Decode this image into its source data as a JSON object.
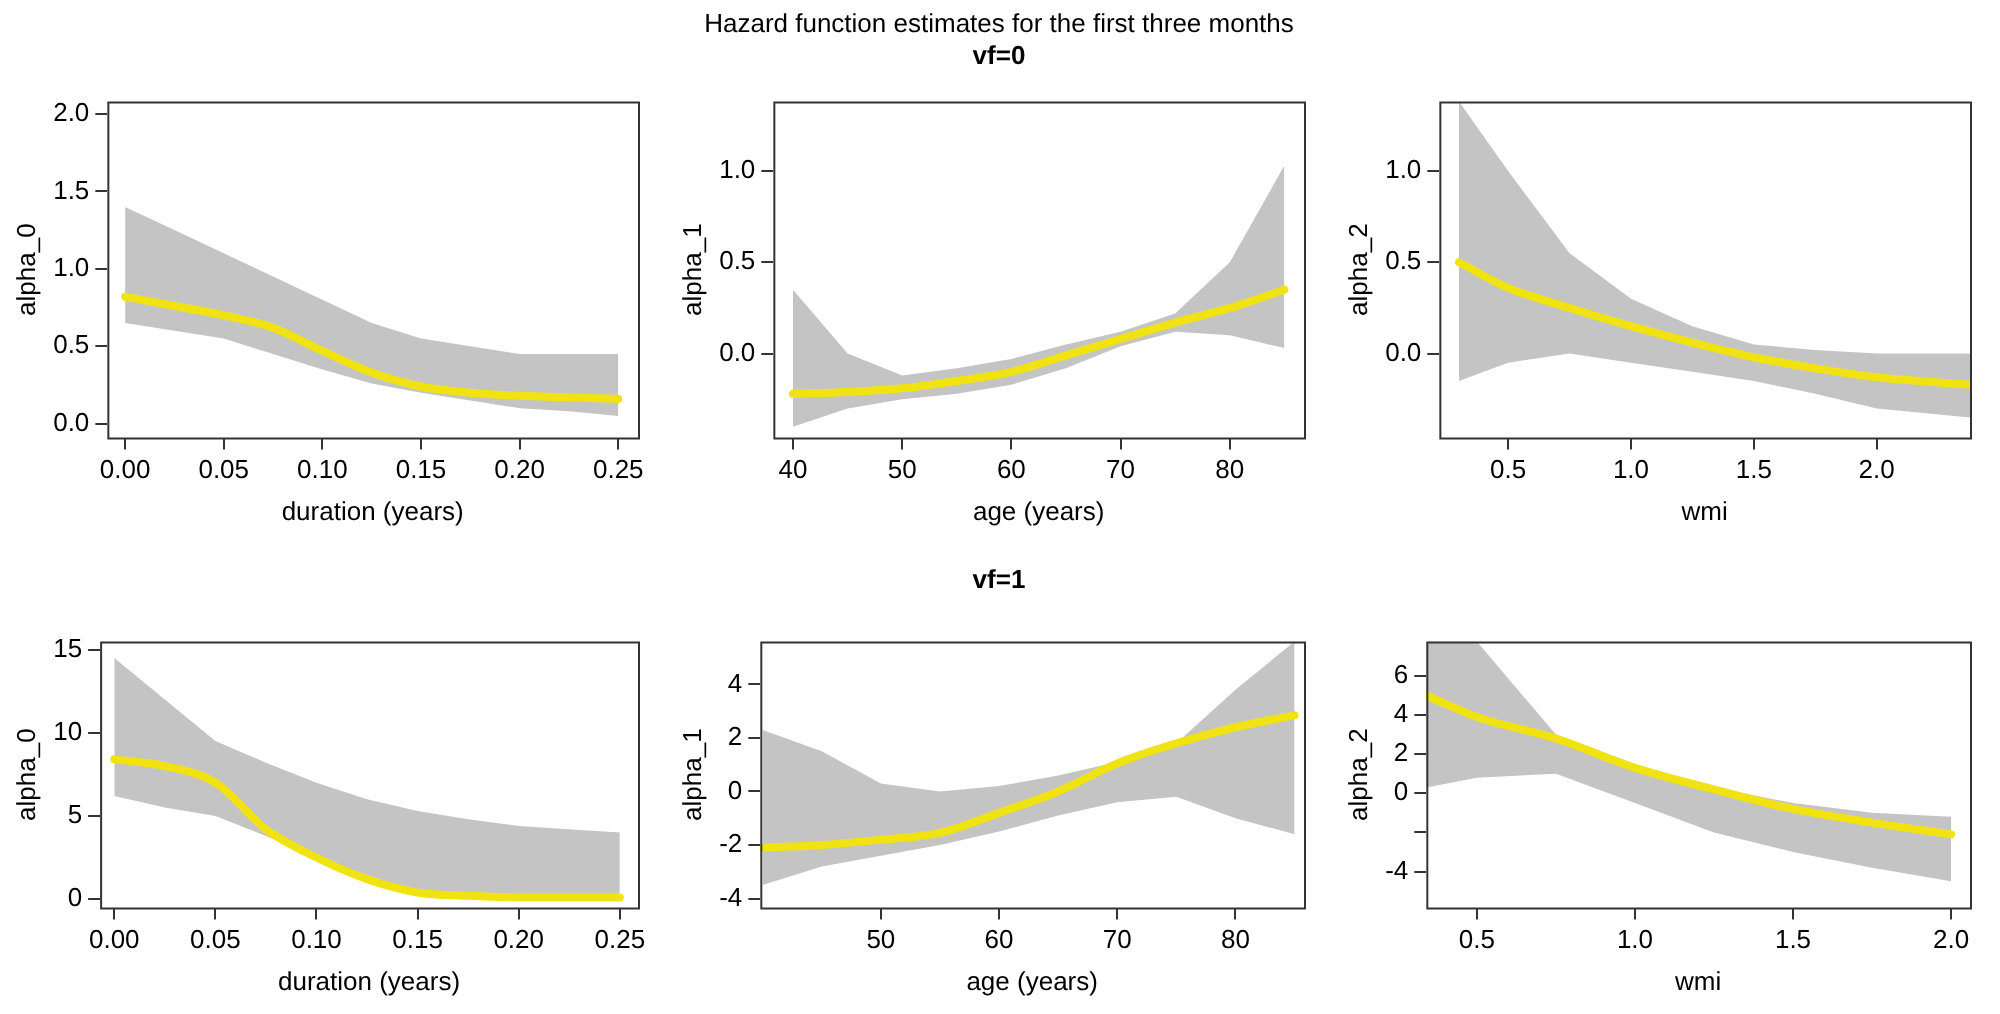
{
  "chart_data": [
    {
      "type": "line",
      "xlabel": "duration (years)",
      "ylabel": "alpha_0",
      "xlim": [
        -0.009,
        0.26
      ],
      "ylim": [
        -0.09,
        2.08
      ],
      "xticks": [
        {
          "value": 0,
          "label": "0.00"
        },
        0.05,
        {
          "value": 0.1,
          "label": "0.10"
        },
        0.15,
        {
          "value": 0.2,
          "label": "0.20"
        },
        0.25
      ],
      "yticks": [
        {
          "value": 0,
          "label": "0.0"
        },
        0.5,
        {
          "value": 1,
          "label": "1.0"
        },
        1.5,
        {
          "value": 2,
          "label": "2.0"
        }
      ],
      "grid": false,
      "legend": false,
      "marker": "none",
      "line_style": "solid",
      "series": [
        {
          "color": "#f0e311",
          "x": [
            0,
            0.025,
            0.05,
            0.075,
            0.1,
            0.125,
            0.15,
            0.175,
            0.2,
            0.225,
            0.25
          ],
          "values": [
            0.82,
            0.76,
            0.7,
            0.62,
            0.47,
            0.33,
            0.24,
            0.2,
            0.18,
            0.17,
            0.16
          ],
          "lower": [
            0.65,
            0.6,
            0.55,
            0.45,
            0.35,
            0.26,
            0.2,
            0.15,
            0.1,
            0.08,
            0.05
          ],
          "upper": [
            1.4,
            1.25,
            1.1,
            0.95,
            0.8,
            0.65,
            0.55,
            0.5,
            0.45,
            0.45,
            0.45
          ]
        }
      ]
    },
    {
      "type": "line",
      "title": "Hazard function estimates for the first three months",
      "subtitle": "vf=0",
      "xlabel": "age (years)",
      "ylabel": "alpha_1",
      "xlim": [
        38.2,
        86.8
      ],
      "ylim": [
        -0.46,
        1.38
      ],
      "xticks": [
        40,
        50,
        60,
        70,
        80
      ],
      "yticks": [
        {
          "value": 0,
          "label": "0.0"
        },
        0.5,
        {
          "value": 1,
          "label": "1.0"
        }
      ],
      "grid": false,
      "legend": false,
      "marker": "none",
      "line_style": "solid",
      "series": [
        {
          "color": "#f0e311",
          "x": [
            40,
            45,
            50,
            55,
            60,
            65,
            70,
            75,
            80,
            85
          ],
          "values": [
            -0.22,
            -0.21,
            -0.19,
            -0.15,
            -0.1,
            -0.01,
            0.08,
            0.17,
            0.25,
            0.35
          ],
          "lower": [
            -0.4,
            -0.3,
            -0.25,
            -0.22,
            -0.17,
            -0.08,
            0.04,
            0.12,
            0.1,
            0.03
          ],
          "upper": [
            0.35,
            0,
            -0.12,
            -0.08,
            -0.03,
            0.05,
            0.12,
            0.22,
            0.5,
            1.03
          ]
        }
      ]
    },
    {
      "type": "line",
      "xlabel": "wmi",
      "ylabel": "alpha_2",
      "xlim": [
        0.22,
        2.38
      ],
      "ylim": [
        -0.46,
        1.38
      ],
      "xticks": [
        0.5,
        {
          "value": 1,
          "label": "1.0"
        },
        1.5,
        {
          "value": 2,
          "label": "2.0"
        }
      ],
      "yticks": [
        {
          "value": 0,
          "label": "0.0"
        },
        0.5,
        {
          "value": 1,
          "label": "1.0"
        }
      ],
      "grid": false,
      "legend": false,
      "marker": "none",
      "line_style": "solid",
      "series": [
        {
          "color": "#f0e311",
          "x": [
            0.3,
            0.5,
            0.75,
            1,
            1.25,
            1.5,
            1.75,
            2,
            2.38
          ],
          "values": [
            0.5,
            0.36,
            0.25,
            0.15,
            0.06,
            -0.02,
            -0.08,
            -0.13,
            -0.17
          ],
          "lower": [
            -0.15,
            -0.05,
            0,
            -0.05,
            -0.1,
            -0.15,
            -0.22,
            -0.3,
            -0.35
          ],
          "upper": [
            1.38,
            1,
            0.55,
            0.3,
            0.15,
            0.05,
            0.02,
            0,
            0
          ]
        }
      ]
    },
    {
      "type": "line",
      "xlabel": "duration (years)",
      "ylabel": "alpha_0",
      "xlim": [
        -0.007,
        0.259
      ],
      "ylim": [
        -0.51,
        15.48
      ],
      "xticks": [
        {
          "value": 0,
          "label": "0.00"
        },
        0.05,
        {
          "value": 0.1,
          "label": "0.10"
        },
        0.15,
        {
          "value": 0.2,
          "label": "0.20"
        },
        0.25
      ],
      "yticks": [
        0,
        5,
        10,
        15
      ],
      "grid": false,
      "legend": false,
      "marker": "none",
      "line_style": "solid",
      "series": [
        {
          "color": "#f0e311",
          "x": [
            0,
            0.025,
            0.05,
            0.075,
            0.1,
            0.125,
            0.15,
            0.175,
            0.2,
            0.225,
            0.25
          ],
          "values": [
            8.4,
            8,
            7,
            4.2,
            2.5,
            1.2,
            0.4,
            0.2,
            0.1,
            0.1,
            0.1
          ],
          "lower": [
            6.2,
            5.5,
            5,
            3.8,
            2.5,
            1.2,
            0.4,
            0.2,
            0.1,
            0.1,
            0.1
          ],
          "upper": [
            14.5,
            12,
            9.5,
            8.2,
            7,
            6,
            5.3,
            4.8,
            4.4,
            4.2,
            4
          ]
        }
      ]
    },
    {
      "type": "line",
      "title": "vf=1",
      "xlabel": "age (years)",
      "ylabel": "alpha_1",
      "xlim": [
        39.8,
        85.8
      ],
      "ylim": [
        -4.34,
        5.6
      ],
      "xticks": [
        50,
        60,
        70,
        80
      ],
      "yticks": [
        -4,
        -2,
        0,
        2,
        4
      ],
      "grid": false,
      "legend": false,
      "marker": "none",
      "line_style": "solid",
      "series": [
        {
          "color": "#f0e311",
          "x": [
            40,
            45,
            50,
            55,
            60,
            65,
            70,
            75,
            80,
            85
          ],
          "values": [
            -2.1,
            -2,
            -1.8,
            -1.55,
            -0.8,
            0,
            1.05,
            1.8,
            2.4,
            2.85
          ],
          "lower": [
            -3.5,
            -2.8,
            -2.4,
            -2,
            -1.5,
            -0.9,
            -0.4,
            -0.2,
            -1,
            -1.6
          ],
          "upper": [
            2.3,
            1.5,
            0.3,
            0,
            0.2,
            0.6,
            1.1,
            1.8,
            3.8,
            5.6
          ]
        }
      ]
    },
    {
      "type": "line",
      "xlabel": "wmi",
      "ylabel": "alpha_2",
      "xlim": [
        0.34,
        2.06
      ],
      "ylim": [
        -5.84,
        7.75
      ],
      "xticks": [
        0.5,
        {
          "value": 1,
          "label": "1.0"
        },
        1.5,
        {
          "value": 2,
          "label": "2.0"
        }
      ],
      "yticks": [
        -4,
        {
          "value": -2,
          "label": null
        },
        0,
        2,
        4,
        6
      ],
      "grid": false,
      "legend": false,
      "marker": "none",
      "line_style": "solid",
      "series": [
        {
          "color": "#f0e311",
          "x": [
            0.34,
            0.5,
            0.75,
            1,
            1.25,
            1.5,
            1.75,
            2
          ],
          "values": [
            5,
            3.9,
            2.8,
            1.3,
            0.2,
            -0.8,
            -1.5,
            -2.1
          ],
          "lower": [
            0.3,
            0.8,
            1,
            -0.5,
            -2,
            -3,
            -3.8,
            -4.5
          ],
          "upper": [
            7.75,
            7.75,
            3,
            1.5,
            0.3,
            -0.5,
            -1,
            -1.2
          ]
        }
      ]
    }
  ]
}
